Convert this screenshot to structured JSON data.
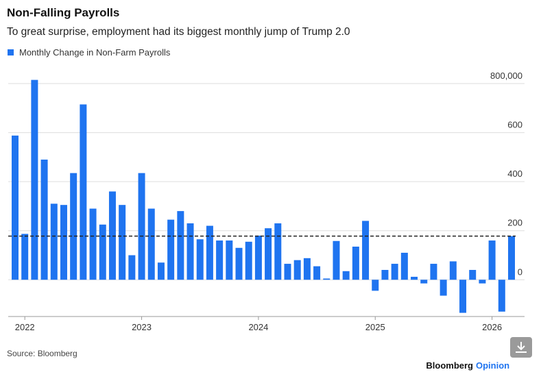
{
  "chart_data": {
    "type": "bar",
    "title": "Non-Falling Payrolls",
    "subtitle": "To great surprise, employment had its biggest monthly jump of Trump 2.0",
    "categories": [
      null,
      "2022",
      null,
      null,
      null,
      null,
      null,
      null,
      null,
      null,
      null,
      null,
      null,
      "2023",
      null,
      null,
      null,
      null,
      null,
      null,
      null,
      null,
      null,
      null,
      null,
      "2024",
      null,
      null,
      null,
      null,
      null,
      null,
      null,
      null,
      null,
      null,
      null,
      "2025",
      null,
      null,
      null,
      null,
      null,
      null,
      null,
      null,
      null,
      null,
      null,
      "2026",
      null,
      null
    ],
    "series": [
      {
        "name": "Monthly Change in Non-Farm Payrolls",
        "color": "#1f74f0",
        "values": [
          588000,
          187000,
          815000,
          490000,
          310000,
          305000,
          435000,
          715000,
          290000,
          225000,
          360000,
          305000,
          100000,
          435000,
          290000,
          70000,
          245000,
          280000,
          230000,
          165000,
          220000,
          160000,
          160000,
          130000,
          155000,
          180000,
          210000,
          230000,
          65000,
          80000,
          88000,
          55000,
          5000,
          158000,
          35000,
          135000,
          240000,
          -45000,
          40000,
          65000,
          110000,
          12000,
          -15000,
          65000,
          -65000,
          75000,
          -135000,
          40000,
          -15000,
          160000,
          -130000,
          178000
        ]
      }
    ],
    "reference_line": 178000,
    "ylim": [
      -150000,
      800000
    ],
    "yticks": [
      0,
      {
        "value": 200000,
        "label": "200"
      },
      {
        "value": 400000,
        "label": "400"
      },
      {
        "value": 600000,
        "label": "600"
      },
      {
        "value": 800000,
        "label": "800,000"
      }
    ],
    "grid": true
  },
  "footer": {
    "source": "Source: Bloomberg",
    "brand": "Bloomberg",
    "brand_suffix": "Opinion"
  }
}
